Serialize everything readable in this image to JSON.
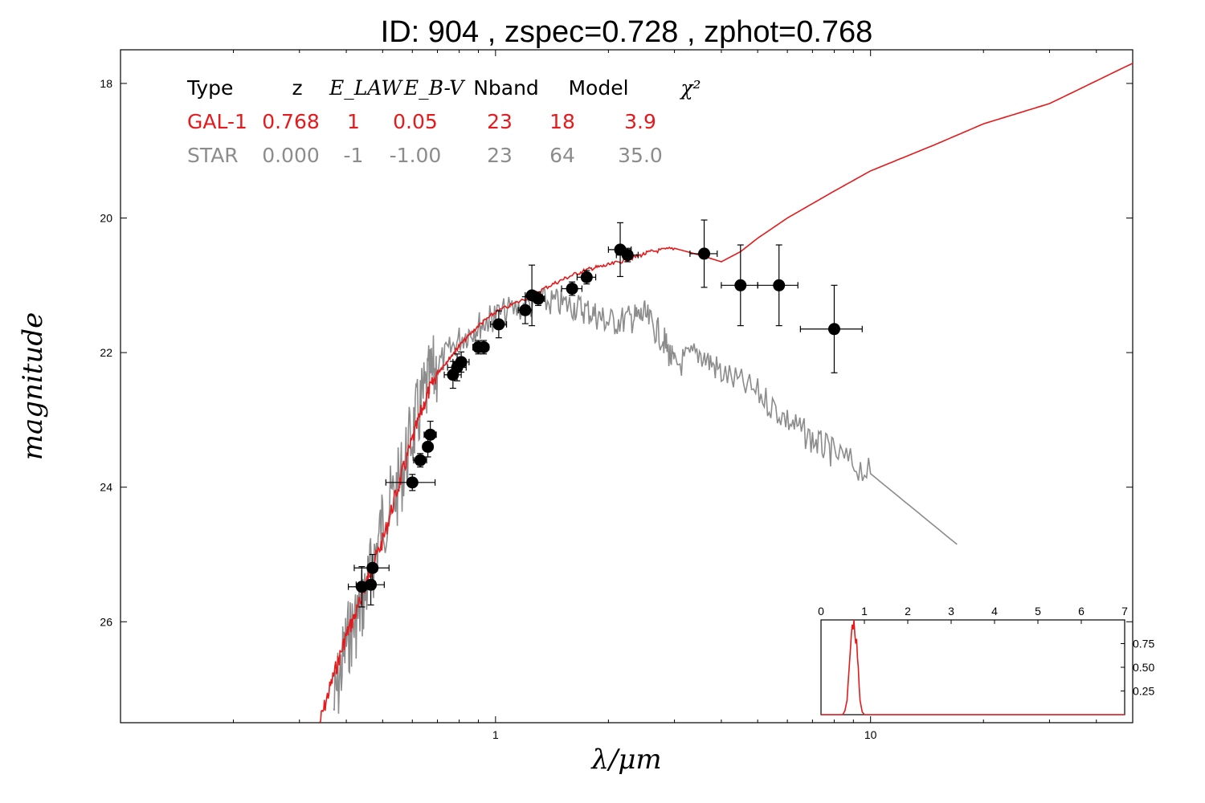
{
  "chart_data": [
    {
      "type": "line",
      "title": "ID:  904   , zspec=0.728 , zphot=0.768",
      "xlabel": "λ/μm",
      "ylabel": "magnitude",
      "xscale": "log",
      "xlim": [
        0.1,
        50
      ],
      "ylim": [
        27.5,
        17.5
      ],
      "y_inverted": true,
      "x_ticks": [
        "1",
        "10"
      ],
      "y_ticks": [
        "18",
        "20",
        "22",
        "24",
        "26"
      ],
      "colors": {
        "galaxy": "#e41a1c",
        "star": "#8c8c8c",
        "points": "#000000"
      },
      "series": [
        {
          "name": "GAL-1",
          "color": "#e41a1c",
          "x": [
            0.34,
            0.37,
            0.4,
            0.43,
            0.46,
            0.5,
            0.55,
            0.6,
            0.65,
            0.7,
            0.75,
            0.8,
            0.9,
            1.0,
            1.2,
            1.4,
            1.6,
            1.8,
            2.0,
            2.3,
            2.6,
            3.0,
            3.5,
            4.0,
            4.5,
            5.0,
            6.0,
            8.0,
            10.0,
            15.0,
            20.0,
            30.0,
            50.0
          ],
          "y": [
            27.5,
            26.8,
            26.2,
            25.8,
            25.3,
            24.8,
            24.0,
            23.3,
            22.7,
            22.3,
            22.1,
            21.9,
            21.6,
            21.4,
            21.2,
            21.0,
            20.85,
            20.75,
            20.7,
            20.6,
            20.5,
            20.45,
            20.55,
            20.65,
            20.5,
            20.3,
            20.0,
            19.6,
            19.3,
            18.9,
            18.6,
            18.3,
            17.7
          ]
        },
        {
          "name": "STAR",
          "color": "#8c8c8c",
          "x": [
            0.37,
            0.4,
            0.43,
            0.46,
            0.5,
            0.55,
            0.6,
            0.65,
            0.7,
            0.8,
            0.9,
            1.0,
            1.2,
            1.4,
            1.6,
            1.8,
            2.0,
            2.3,
            2.5,
            2.8,
            3.0,
            3.5,
            4.0,
            5.0,
            6.0,
            7.0,
            8.0,
            10.0,
            17.0
          ],
          "y": [
            27.3,
            26.3,
            25.9,
            25.4,
            24.5,
            24.0,
            23.2,
            22.6,
            22.2,
            21.8,
            21.6,
            21.45,
            21.3,
            21.25,
            21.3,
            21.4,
            21.55,
            21.5,
            21.45,
            21.8,
            22.2,
            22.0,
            22.3,
            22.6,
            23.0,
            23.3,
            23.5,
            23.8,
            24.85
          ]
        }
      ],
      "photometry": [
        {
          "x": 0.44,
          "xerr": 0.035,
          "y": 25.48,
          "yerr": 0.3
        },
        {
          "x": 0.465,
          "xerr": 0.04,
          "y": 25.45,
          "yerr": 0.3
        },
        {
          "x": 0.47,
          "xerr": 0.05,
          "y": 25.2,
          "yerr": 0.2
        },
        {
          "x": 0.6,
          "xerr": 0.09,
          "y": 23.93,
          "yerr": 0.12
        },
        {
          "x": 0.63,
          "xerr": 0.025,
          "y": 23.6,
          "yerr": 0.1
        },
        {
          "x": 0.66,
          "xerr": 0.02,
          "y": 23.4,
          "yerr": 0.15
        },
        {
          "x": 0.67,
          "xerr": 0.025,
          "y": 23.22,
          "yerr": 0.2
        },
        {
          "x": 0.77,
          "xerr": 0.04,
          "y": 22.33,
          "yerr": 0.2
        },
        {
          "x": 0.79,
          "xerr": 0.045,
          "y": 22.22,
          "yerr": 0.2
        },
        {
          "x": 0.81,
          "xerr": 0.04,
          "y": 22.14,
          "yerr": 0.15
        },
        {
          "x": 0.9,
          "xerr": 0.03,
          "y": 21.92,
          "yerr": 0.1
        },
        {
          "x": 0.93,
          "xerr": 0.03,
          "y": 21.92,
          "yerr": 0.1
        },
        {
          "x": 1.02,
          "xerr": 0.05,
          "y": 21.58,
          "yerr": 0.2
        },
        {
          "x": 1.2,
          "xerr": 0.05,
          "y": 21.37,
          "yerr": 0.2
        },
        {
          "x": 1.25,
          "xerr": 0.05,
          "y": 21.15,
          "yerr": 0.45
        },
        {
          "x": 1.3,
          "xerr": 0.05,
          "y": 21.2,
          "yerr": 0.1
        },
        {
          "x": 1.6,
          "xerr": 0.1,
          "y": 21.05,
          "yerr": 0.1
        },
        {
          "x": 1.75,
          "xerr": 0.1,
          "y": 20.88,
          "yerr": 0.1
        },
        {
          "x": 2.15,
          "xerr": 0.15,
          "y": 20.47,
          "yerr": 0.4
        },
        {
          "x": 2.25,
          "xerr": 0.15,
          "y": 20.55,
          "yerr": 0.1
        },
        {
          "x": 3.6,
          "xerr": 0.3,
          "y": 20.53,
          "yerr": 0.5
        },
        {
          "x": 4.5,
          "xerr": 0.5,
          "y": 21.0,
          "yerr": 0.6
        },
        {
          "x": 5.7,
          "xerr": 0.7,
          "y": 21.0,
          "yerr": 0.6
        },
        {
          "x": 8.0,
          "xerr": 1.5,
          "y": 21.65,
          "yerr": 0.65
        }
      ],
      "fit_table": {
        "columns": [
          "Type",
          "z",
          "E_LAW",
          "E_B-V",
          "Nband",
          "Model",
          "χ²"
        ],
        "rows": [
          {
            "color": "#e41a1c",
            "cells": [
              "GAL-1",
              "0.768",
              "1",
              "0.05",
              "23",
              "18",
              "3.9"
            ]
          },
          {
            "color": "#8c8c8c",
            "cells": [
              "STAR",
              "0.000",
              "-1",
              "-1.00",
              "23",
              "64",
              "35.0"
            ]
          }
        ]
      }
    },
    {
      "type": "line",
      "title": "",
      "xlim": [
        0,
        7
      ],
      "ylim": [
        0,
        1.0
      ],
      "x_ticks": [
        "0",
        "1",
        "2",
        "3",
        "4",
        "5",
        "6",
        "7"
      ],
      "y_ticks": [
        "0.25",
        "0.50",
        "0.75"
      ],
      "series": [
        {
          "color": "#e41a1c",
          "x": [
            0.0,
            0.5,
            0.55,
            0.6,
            0.62,
            0.65,
            0.68,
            0.7,
            0.72,
            0.74,
            0.76,
            0.78,
            0.8,
            0.82,
            0.84,
            0.86,
            0.88,
            0.9,
            0.95,
            1.0,
            7.0
          ],
          "y": [
            0.0,
            0.0,
            0.04,
            0.15,
            0.3,
            0.5,
            0.7,
            0.85,
            0.95,
            0.9,
            1.0,
            0.85,
            0.75,
            0.8,
            0.6,
            0.5,
            0.3,
            0.15,
            0.03,
            0.0,
            0.0
          ]
        }
      ]
    }
  ]
}
